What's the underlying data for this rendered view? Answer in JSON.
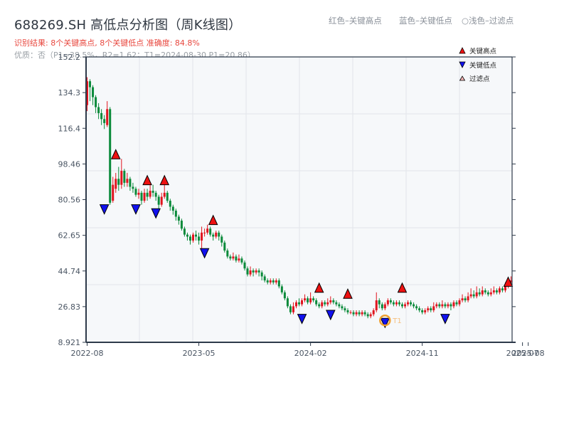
{
  "header": {
    "title": "688269.SH 高低点分析图（周K线图）",
    "result": "识别结果: 8个关键高点, 8个关键低点  准确度: 84.8%",
    "quality": "优质：否（P1=38.5%，R2=1.62；T1=2024-08-30 P1=20.86）"
  },
  "top_legend": {
    "red": "红色–关键高点",
    "blue": "蓝色–关键低点",
    "light": "○浅色–过滤点"
  },
  "colors": {
    "up": "#e0141e",
    "down": "#0a8a3a",
    "high_marker": "#ee1111",
    "low_marker": "#1111ee",
    "t1_circle": "#f0a030",
    "plot_bg": "#f6f8fa",
    "grid": "#e2e5ea",
    "axis": "#2e3a4a"
  },
  "chart_data": {
    "type": "candlestick",
    "title": "688269.SH 高低点分析图（周K线图）",
    "xlabel": "",
    "ylabel": "",
    "ylim": [
      8.921,
      152.2
    ],
    "yticks": [
      "152.2",
      "134.3",
      "116.4",
      "98.46",
      "80.56",
      "62.65",
      "44.74",
      "26.83",
      "8.921"
    ],
    "xticks": [
      {
        "label": "2022-08",
        "week": 0
      },
      {
        "label": "2023-05",
        "week": 39
      },
      {
        "label": "2024-02",
        "week": 78
      },
      {
        "label": "2024-11",
        "week": 117
      },
      {
        "label": "2025-07",
        "week": 152
      },
      {
        "label": "2025-08",
        "week": 154
      }
    ],
    "grid": true,
    "legend": {
      "position": "upper right",
      "entries": [
        {
          "label": "关键高点",
          "marker": "triangle-up",
          "color": "#ee1111"
        },
        {
          "label": "关键低点",
          "marker": "triangle-down",
          "color": "#1111ee"
        },
        {
          "label": "过滤点",
          "marker": "triangle-up-hollow",
          "color": "#f4b6b6"
        }
      ]
    },
    "candles_ohlc": [
      [
        128,
        140,
        142,
        125
      ],
      [
        140,
        137,
        141,
        130
      ],
      [
        137,
        132,
        138,
        128
      ],
      [
        132,
        127,
        133,
        124
      ],
      [
        127,
        124,
        129,
        121
      ],
      [
        124,
        121,
        126,
        118
      ],
      [
        121,
        119,
        123,
        116
      ],
      [
        118,
        126,
        130,
        117
      ],
      [
        126,
        79,
        127,
        78
      ],
      [
        80,
        88,
        92,
        79
      ],
      [
        86,
        91,
        94,
        84
      ],
      [
        91,
        88,
        97,
        85
      ],
      [
        88,
        95,
        101,
        86
      ],
      [
        95,
        89,
        96,
        87
      ],
      [
        89,
        91,
        94,
        87
      ],
      [
        91,
        87,
        92,
        85
      ],
      [
        87,
        86,
        89,
        84
      ],
      [
        86,
        83,
        87,
        82
      ],
      [
        83,
        84,
        86,
        81
      ],
      [
        84,
        80,
        85,
        78
      ],
      [
        80,
        84,
        86,
        79
      ],
      [
        84,
        82,
        86,
        80
      ],
      [
        82,
        85,
        88,
        81
      ],
      [
        85,
        84,
        88,
        82
      ],
      [
        84,
        82,
        85,
        80
      ],
      [
        82,
        78,
        83,
        76
      ],
      [
        78,
        82,
        84,
        77
      ],
      [
        82,
        84,
        88,
        81
      ],
      [
        84,
        80,
        85,
        79
      ],
      [
        80,
        77,
        81,
        75
      ],
      [
        77,
        75,
        78,
        73
      ],
      [
        75,
        72,
        76,
        70
      ],
      [
        72,
        70,
        73,
        68
      ],
      [
        70,
        66,
        71,
        65
      ],
      [
        66,
        63,
        67,
        62
      ],
      [
        63,
        62,
        64,
        60
      ],
      [
        62,
        60,
        63,
        58
      ],
      [
        60,
        63,
        64,
        59
      ],
      [
        63,
        62,
        65,
        60
      ],
      [
        62,
        60,
        64,
        58
      ],
      [
        60,
        64,
        67,
        56
      ],
      [
        64,
        64,
        66,
        62
      ],
      [
        64,
        66,
        68,
        63
      ],
      [
        66,
        63,
        67,
        62
      ],
      [
        63,
        62,
        64,
        60
      ],
      [
        62,
        64,
        65,
        61
      ],
      [
        64,
        62,
        65,
        60
      ],
      [
        62,
        59,
        63,
        57
      ],
      [
        59,
        55,
        60,
        54
      ],
      [
        55,
        52,
        56,
        51
      ],
      [
        52,
        51,
        53,
        50
      ],
      [
        51,
        52,
        54,
        50
      ],
      [
        52,
        50,
        53,
        49
      ],
      [
        50,
        51,
        53,
        49
      ],
      [
        51,
        49,
        52,
        48
      ],
      [
        49,
        46,
        50,
        45
      ],
      [
        46,
        43,
        47,
        42
      ],
      [
        43,
        45,
        47,
        42
      ],
      [
        45,
        44,
        46,
        42
      ],
      [
        44,
        45,
        46,
        43
      ],
      [
        45,
        44,
        46,
        42
      ],
      [
        44,
        42,
        45,
        40
      ],
      [
        42,
        40,
        43,
        39
      ],
      [
        40,
        39,
        41,
        38
      ],
      [
        39,
        40,
        41,
        38
      ],
      [
        40,
        39,
        41,
        38
      ],
      [
        39,
        40,
        41,
        38
      ],
      [
        40,
        37,
        41,
        36
      ],
      [
        37,
        34,
        38,
        33
      ],
      [
        34,
        31,
        35,
        30
      ],
      [
        31,
        27,
        32,
        26
      ],
      [
        27,
        24,
        28,
        23
      ],
      [
        24,
        27,
        29,
        23
      ],
      [
        27,
        29,
        30,
        26
      ],
      [
        29,
        28,
        31,
        27
      ],
      [
        28,
        30,
        31,
        27
      ],
      [
        30,
        31,
        33,
        29
      ],
      [
        31,
        29,
        32,
        28
      ],
      [
        29,
        31,
        34,
        28
      ],
      [
        31,
        30,
        32,
        29
      ],
      [
        30,
        28,
        31,
        27
      ],
      [
        28,
        27,
        29,
        26
      ],
      [
        27,
        29,
        30,
        26
      ],
      [
        29,
        28,
        30,
        27
      ],
      [
        28,
        29,
        31,
        27
      ],
      [
        29,
        30,
        32,
        28
      ],
      [
        30,
        29,
        31,
        28
      ],
      [
        29,
        28,
        30,
        27
      ],
      [
        28,
        27,
        29,
        26
      ],
      [
        27,
        26,
        28,
        25
      ],
      [
        26,
        25,
        27,
        24
      ],
      [
        25,
        24,
        26,
        23
      ],
      [
        24,
        24,
        25,
        23
      ],
      [
        24,
        23,
        25,
        22
      ],
      [
        23,
        24,
        25,
        22
      ],
      [
        24,
        23,
        25,
        22
      ],
      [
        23,
        24,
        25,
        22
      ],
      [
        24,
        23,
        25,
        22
      ],
      [
        23,
        22,
        24,
        21
      ],
      [
        22,
        23,
        24,
        21
      ],
      [
        23,
        25,
        26,
        22
      ],
      [
        25,
        30,
        34,
        24
      ],
      [
        30,
        28,
        31,
        26
      ],
      [
        28,
        26,
        29,
        25
      ],
      [
        26,
        28,
        29,
        25
      ],
      [
        28,
        30,
        31,
        27
      ],
      [
        30,
        29,
        31,
        28
      ],
      [
        29,
        28,
        30,
        27
      ],
      [
        28,
        29,
        30,
        27
      ],
      [
        29,
        28,
        30,
        27
      ],
      [
        28,
        27,
        29,
        26
      ],
      [
        27,
        28,
        29,
        26
      ],
      [
        28,
        29,
        30,
        27
      ],
      [
        29,
        28,
        30,
        27
      ],
      [
        28,
        27,
        29,
        26
      ],
      [
        27,
        26,
        28,
        25
      ],
      [
        26,
        25,
        27,
        24
      ],
      [
        25,
        24,
        26,
        23
      ],
      [
        24,
        25,
        26,
        23
      ],
      [
        25,
        26,
        27,
        24
      ],
      [
        26,
        25,
        27,
        24
      ],
      [
        25,
        27,
        29,
        24
      ],
      [
        27,
        28,
        29,
        26
      ],
      [
        28,
        27,
        29,
        26
      ],
      [
        27,
        28,
        30,
        26
      ],
      [
        28,
        27,
        29,
        26
      ],
      [
        27,
        28,
        29,
        26
      ],
      [
        28,
        27,
        29,
        25
      ],
      [
        27,
        29,
        30,
        26
      ],
      [
        29,
        28,
        30,
        27
      ],
      [
        28,
        30,
        31,
        27
      ],
      [
        30,
        31,
        33,
        29
      ],
      [
        31,
        30,
        32,
        29
      ],
      [
        30,
        32,
        34,
        29
      ],
      [
        32,
        33,
        36,
        31
      ],
      [
        33,
        32,
        35,
        31
      ],
      [
        32,
        34,
        37,
        31
      ],
      [
        34,
        33,
        36,
        32
      ],
      [
        33,
        35,
        37,
        32
      ],
      [
        35,
        34,
        36,
        33
      ],
      [
        34,
        33,
        35,
        32
      ],
      [
        33,
        34,
        36,
        32
      ],
      [
        34,
        35,
        37,
        33
      ],
      [
        35,
        34,
        36,
        33
      ],
      [
        34,
        36,
        37,
        33
      ],
      [
        36,
        35,
        37,
        34
      ],
      [
        35,
        37,
        39,
        34
      ],
      [
        37,
        39,
        41,
        36
      ],
      [
        39,
        40,
        42,
        38
      ]
    ],
    "key_highs": [
      {
        "week": 10,
        "price": 101
      },
      {
        "week": 21,
        "price": 88
      },
      {
        "week": 27,
        "price": 88
      },
      {
        "week": 44,
        "price": 68
      },
      {
        "week": 81,
        "price": 34
      },
      {
        "week": 91,
        "price": 31
      },
      {
        "week": 110,
        "price": 34
      },
      {
        "week": 147,
        "price": 37
      }
    ],
    "key_lows": [
      {
        "week": 6,
        "price": 78
      },
      {
        "week": 17,
        "price": 78
      },
      {
        "week": 24,
        "price": 76
      },
      {
        "week": 41,
        "price": 56
      },
      {
        "week": 75,
        "price": 23
      },
      {
        "week": 85,
        "price": 25
      },
      {
        "week": 104,
        "price": 21
      },
      {
        "week": 125,
        "price": 23
      }
    ],
    "annotations": [
      {
        "text": "T1",
        "week": 104,
        "price": 21,
        "type": "circle"
      }
    ]
  }
}
